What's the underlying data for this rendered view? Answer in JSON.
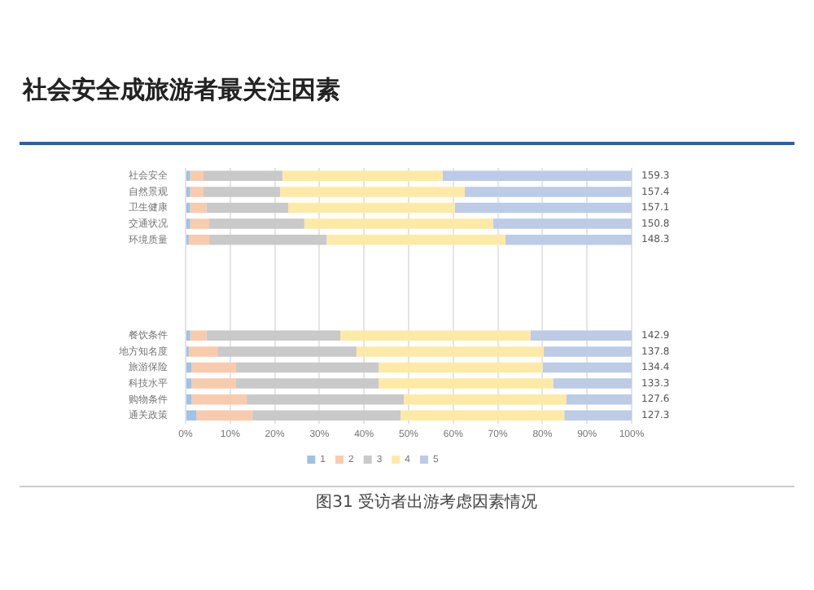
{
  "chart_data": {
    "type": "bar",
    "orientation": "horizontal",
    "stacked": true,
    "title": "社会安全成旅游者最关注因素",
    "categories": [
      "社会安全",
      "自然景观",
      "卫生健康",
      "交通状况",
      "环境质量",
      null,
      null,
      null,
      null,
      null,
      "餐饮条件",
      "地方知名度",
      "旅游保险",
      "科技水平",
      "购物条件",
      "通关政策"
    ],
    "series": [
      {
        "name": "1",
        "color": "#9dc3e6",
        "values": [
          1,
          1,
          1,
          1,
          0.7,
          null,
          null,
          null,
          null,
          null,
          1,
          0.7,
          1.3,
          1.3,
          1.3,
          2.4
        ]
      },
      {
        "name": "2",
        "color": "#f8cbad",
        "values": [
          3,
          3,
          3.7,
          4.3,
          4.6,
          null,
          null,
          null,
          null,
          null,
          3.7,
          6.6,
          10,
          10,
          12.4,
          12.6
        ]
      },
      {
        "name": "3",
        "color": "#c9c9c9",
        "values": [
          17.7,
          17.2,
          18.3,
          21.3,
          26.3,
          null,
          null,
          null,
          null,
          null,
          30,
          31,
          32,
          32,
          35.2,
          33.2
        ]
      },
      {
        "name": "4",
        "color": "#ffe9a6",
        "values": [
          35.9,
          41.4,
          37.4,
          42.3,
          40.1,
          null,
          null,
          null,
          null,
          null,
          42.6,
          42,
          36.8,
          39.1,
          36.4,
          36.7
        ]
      },
      {
        "name": "5",
        "color": "#bccbe6",
        "values": [
          42.4,
          37.4,
          39.6,
          31.1,
          28.3,
          null,
          null,
          null,
          null,
          null,
          22.7,
          19.7,
          19.9,
          17.6,
          14.7,
          15.1
        ]
      }
    ],
    "xlim": [
      0,
      100
    ],
    "xticks": [
      {
        "value": 0,
        "label": "0%"
      },
      {
        "value": 10,
        "label": "10%"
      },
      {
        "value": 20,
        "label": "20%"
      },
      {
        "value": 30,
        "label": "30%"
      },
      {
        "value": 40,
        "label": "40%"
      },
      {
        "value": 50,
        "label": "50%"
      },
      {
        "value": 60,
        "label": "60%"
      },
      {
        "value": 70,
        "label": "70%"
      },
      {
        "value": 80,
        "label": "80%"
      },
      {
        "value": 90,
        "label": "90%"
      },
      {
        "value": 100,
        "label": "100%"
      }
    ],
    "grid": "x",
    "legend": "bottom",
    "annotations": [
      "159.3",
      "157.4",
      "157.1",
      "150.8",
      "148.3",
      "142.9",
      "137.8",
      "134.4",
      "133.3",
      "127.6",
      "127.3",
      "图31 受访者出游考虑因素情况"
    ]
  }
}
